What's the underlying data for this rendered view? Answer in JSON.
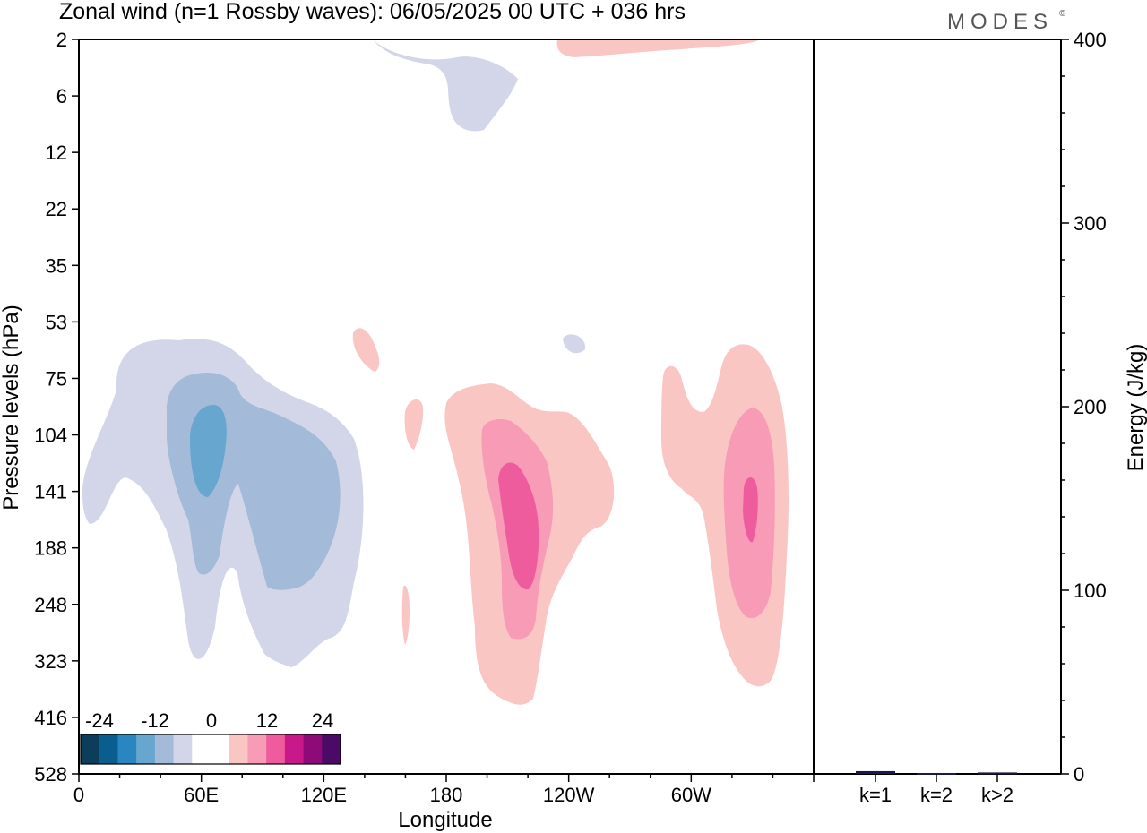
{
  "title": "Zonal wind (n=1 Rossby waves):  06/05/2025  00 UTC  + 036 hrs",
  "logo": "MODES",
  "logo_mark": "©",
  "chart_data": [
    {
      "type": "heatmap",
      "title": "Zonal wind (n=1 Rossby waves):  06/05/2025  00 UTC  + 036 hrs",
      "xlabel": "Longitude",
      "ylabel": "Pressure levels (hPa)",
      "x_ticks": [
        "0",
        "60E",
        "120E",
        "180",
        "120W",
        "60W"
      ],
      "x_tick_values": [
        0,
        60,
        120,
        180,
        240,
        300
      ],
      "xlim": [
        0,
        360
      ],
      "y_ticks": [
        "2",
        "6",
        "12",
        "22",
        "35",
        "53",
        "75",
        "104",
        "141",
        "188",
        "248",
        "323",
        "416",
        "528"
      ],
      "grid": false,
      "colorbar": {
        "tick_labels": [
          "-24",
          "-12",
          "0",
          "12",
          "24"
        ],
        "colors": [
          "#0c3d5a",
          "#0a5e8e",
          "#2a86c0",
          "#66a6cf",
          "#a3bad9",
          "#d3d6e8",
          "#ffffff",
          "#ffffff",
          "#f9c6c4",
          "#f79bb7",
          "#ef5c9e",
          "#c8188a",
          "#8e0a78",
          "#4a0a66"
        ]
      },
      "contours": [
        {
          "level": "-4",
          "color": "#d3d6e8",
          "region": "blob-neg-a"
        },
        {
          "level": "-4",
          "color": "#d3d6e8",
          "region": "blob-neg-b"
        },
        {
          "level": "-4",
          "color": "#d3d6e8",
          "region": "blob-neg-c"
        },
        {
          "level": "-8",
          "color": "#a3bad9",
          "region": "blob-neg-d"
        },
        {
          "level": "-12",
          "color": "#66a6cf",
          "region": "blob-neg-e"
        },
        {
          "level": "4",
          "color": "#f9c6c4",
          "region": "blob-pos-a"
        },
        {
          "level": "4",
          "color": "#f9c6c4",
          "region": "blob-pos-b"
        },
        {
          "level": "4",
          "color": "#f9c6c4",
          "region": "blob-pos-c"
        },
        {
          "level": "4",
          "color": "#f9c6c4",
          "region": "blob-pos-d"
        },
        {
          "level": "4",
          "color": "#f9c6c4",
          "region": "blob-pos-e"
        },
        {
          "level": "4",
          "color": "#f9c6c4",
          "region": "blob-pos-f"
        },
        {
          "level": "8",
          "color": "#f79bb7",
          "region": "blob-pos-g"
        },
        {
          "level": "8",
          "color": "#f79bb7",
          "region": "blob-pos-h"
        },
        {
          "level": "12",
          "color": "#ef5c9e",
          "region": "blob-pos-i"
        },
        {
          "level": "12",
          "color": "#ef5c9e",
          "region": "blob-pos-j"
        }
      ]
    },
    {
      "type": "bar",
      "categories": [
        "k=1",
        "k=2",
        "k>2"
      ],
      "values": [
        1,
        0,
        0.3
      ],
      "ylabel": "Energy (J/kg)",
      "ylim": [
        0,
        400
      ],
      "y_ticks": [
        0,
        100,
        200,
        300,
        400
      ],
      "bar_color": "#1a1a4a",
      "grid": false
    }
  ]
}
